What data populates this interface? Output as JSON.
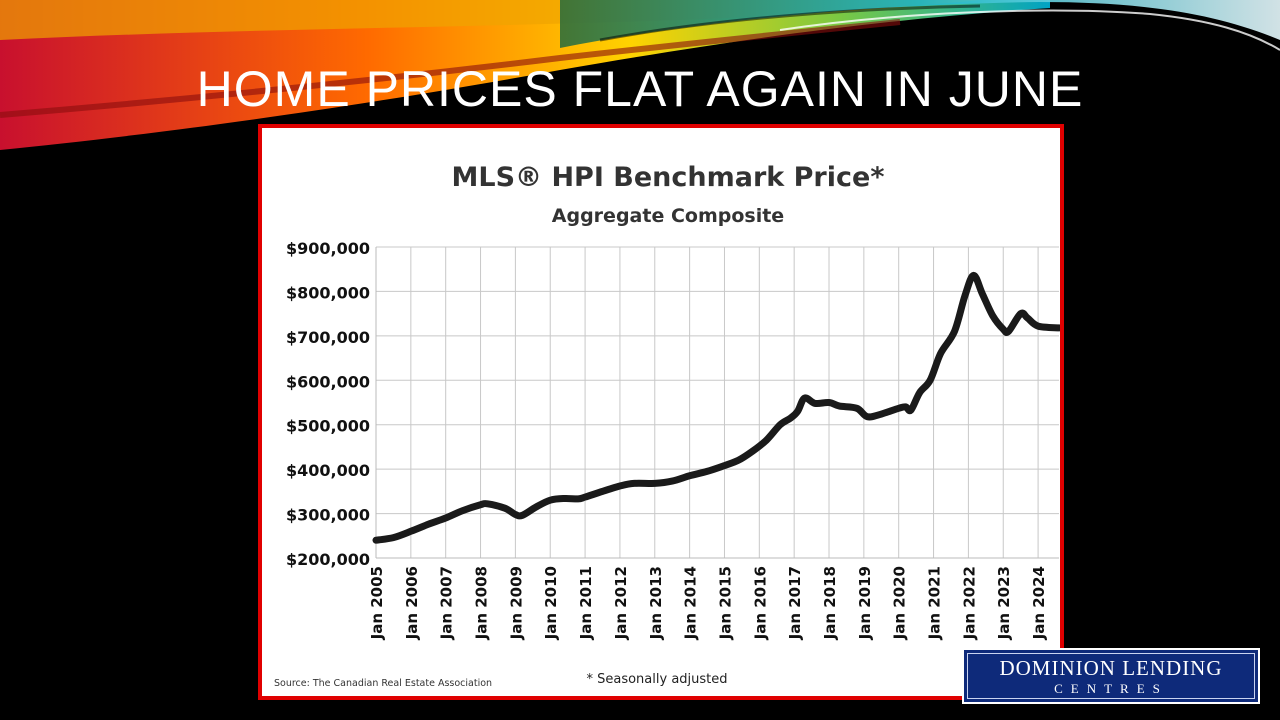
{
  "slide": {
    "title": "HOME PRICES FLAT AGAIN IN JUNE"
  },
  "logo": {
    "line1": "DOMINION LENDING",
    "line2": "CENTRES"
  },
  "colors": {
    "accent_border": "#e00000",
    "series_line": "#1a1a1a",
    "logo_bg": "#0e2a7a"
  },
  "chart_data": {
    "type": "line",
    "title": "MLS® HPI Benchmark Price*",
    "subtitle": "Aggregate Composite",
    "source": "Source: The Canadian Real Estate Association",
    "footnote": "* Seasonally adjusted",
    "xlim": [
      2005,
      2024.6
    ],
    "ylim": [
      200000,
      900000
    ],
    "grid": true,
    "x_ticks": [
      2005,
      2006,
      2007,
      2008,
      2009,
      2010,
      2011,
      2012,
      2013,
      2014,
      2015,
      2016,
      2017,
      2018,
      2019,
      2020,
      2021,
      2022,
      2023,
      2024
    ],
    "x_tick_labels": [
      "Jan 2005",
      "Jan 2006",
      "Jan 2007",
      "Jan 2008",
      "Jan 2009",
      "Jan 2010",
      "Jan 2011",
      "Jan 2012",
      "Jan 2013",
      "Jan 2014",
      "Jan 2015",
      "Jan 2016",
      "Jan 2017",
      "Jan 2018",
      "Jan 2019",
      "Jan 2020",
      "Jan 2021",
      "Jan 2022",
      "Jan 2023",
      "Jan 2024"
    ],
    "y_ticks": [
      200000,
      300000,
      400000,
      500000,
      600000,
      700000,
      800000,
      900000
    ],
    "y_tick_labels": [
      "$200,000",
      "$300,000",
      "$400,000",
      "$500,000",
      "$600,000",
      "$700,000",
      "$800,000",
      "$900,000"
    ],
    "series": [
      {
        "points": [
          [
            2005.0,
            240000
          ],
          [
            2005.5,
            246000
          ],
          [
            2006.0,
            260000
          ],
          [
            2006.5,
            276000
          ],
          [
            2007.0,
            290000
          ],
          [
            2007.5,
            307000
          ],
          [
            2008.0,
            320000
          ],
          [
            2008.2,
            322000
          ],
          [
            2008.7,
            312000
          ],
          [
            2009.0,
            298000
          ],
          [
            2009.2,
            296000
          ],
          [
            2009.6,
            315000
          ],
          [
            2010.0,
            330000
          ],
          [
            2010.4,
            334000
          ],
          [
            2010.8,
            333000
          ],
          [
            2011.0,
            337000
          ],
          [
            2011.5,
            350000
          ],
          [
            2012.0,
            362000
          ],
          [
            2012.4,
            368000
          ],
          [
            2013.0,
            368000
          ],
          [
            2013.5,
            373000
          ],
          [
            2014.0,
            385000
          ],
          [
            2014.5,
            395000
          ],
          [
            2015.0,
            408000
          ],
          [
            2015.4,
            420000
          ],
          [
            2015.8,
            440000
          ],
          [
            2016.2,
            465000
          ],
          [
            2016.6,
            500000
          ],
          [
            2016.9,
            515000
          ],
          [
            2017.1,
            530000
          ],
          [
            2017.3,
            560000
          ],
          [
            2017.6,
            548000
          ],
          [
            2018.0,
            550000
          ],
          [
            2018.3,
            542000
          ],
          [
            2018.8,
            537000
          ],
          [
            2019.1,
            518000
          ],
          [
            2019.5,
            524000
          ],
          [
            2020.0,
            537000
          ],
          [
            2020.2,
            540000
          ],
          [
            2020.35,
            533000
          ],
          [
            2020.6,
            572000
          ],
          [
            2020.9,
            600000
          ],
          [
            2021.2,
            660000
          ],
          [
            2021.6,
            710000
          ],
          [
            2021.9,
            790000
          ],
          [
            2022.15,
            836000
          ],
          [
            2022.4,
            795000
          ],
          [
            2022.7,
            745000
          ],
          [
            2023.0,
            715000
          ],
          [
            2023.15,
            710000
          ],
          [
            2023.5,
            750000
          ],
          [
            2023.7,
            740000
          ],
          [
            2024.0,
            722000
          ],
          [
            2024.6,
            718000
          ]
        ]
      }
    ]
  }
}
